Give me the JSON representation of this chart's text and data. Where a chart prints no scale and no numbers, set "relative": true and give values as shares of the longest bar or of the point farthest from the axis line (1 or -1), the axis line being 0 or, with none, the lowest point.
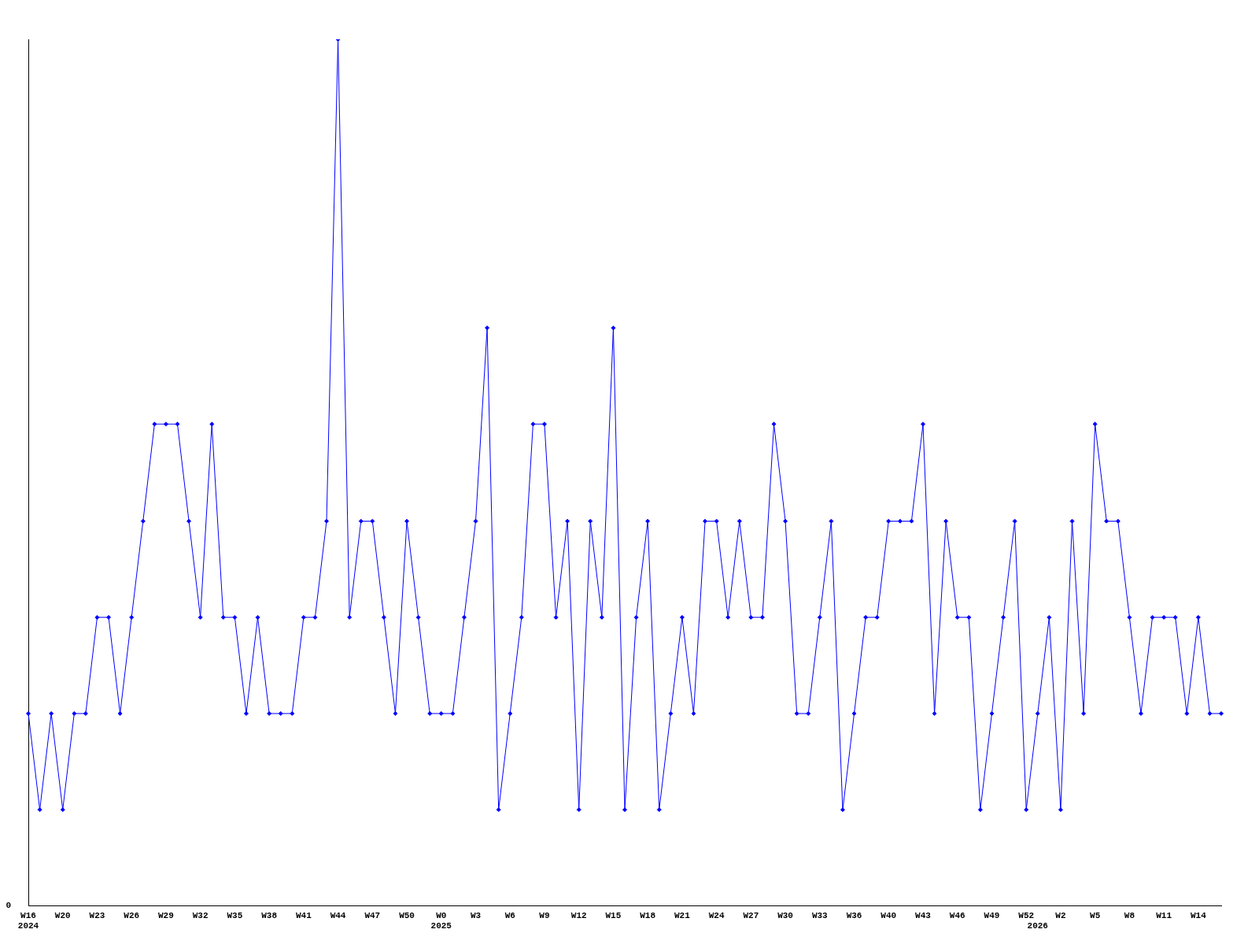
{
  "chart_data": {
    "type": "line",
    "relative": true,
    "marker": "diamond",
    "grid": false,
    "legend": false,
    "categories": [
      "W16\n2024",
      null,
      null,
      "W20",
      null,
      null,
      "W23",
      null,
      null,
      "W26",
      null,
      null,
      "W29",
      null,
      null,
      "W32",
      null,
      null,
      "W35",
      null,
      null,
      "W38",
      null,
      null,
      "W41",
      null,
      null,
      "W44",
      null,
      null,
      "W47",
      null,
      null,
      "W50",
      null,
      null,
      "W0\n2025",
      null,
      null,
      "W3",
      null,
      null,
      "W6",
      null,
      null,
      "W9",
      null,
      null,
      "W12",
      null,
      null,
      "W15",
      null,
      null,
      "W18",
      null,
      null,
      "W21",
      null,
      null,
      "W24",
      null,
      null,
      "W27",
      null,
      null,
      "W30",
      null,
      null,
      "W33",
      null,
      null,
      "W36",
      null,
      null,
      "W40",
      null,
      null,
      "W43",
      null,
      null,
      "W46",
      null,
      null,
      "W49",
      null,
      null,
      "W52",
      "\n2026",
      null,
      "W2",
      null,
      null,
      "W5",
      null,
      null,
      "W8",
      null,
      null,
      "W11",
      null,
      null,
      "W14",
      null,
      null
    ],
    "series": [
      {
        "color": "#0000ff",
        "values": [
          0.222,
          0.111,
          0.222,
          0.111,
          0.222,
          0.222,
          0.333,
          0.333,
          0.222,
          0.333,
          0.444,
          0.556,
          0.556,
          0.556,
          0.444,
          0.333,
          0.556,
          0.333,
          0.333,
          0.222,
          0.333,
          0.222,
          0.222,
          0.222,
          0.333,
          0.333,
          0.444,
          1,
          0.333,
          0.444,
          0.444,
          0.333,
          0.222,
          0.444,
          0.333,
          0.222,
          0.222,
          0.222,
          0.333,
          0.444,
          0.667,
          0.111,
          0.222,
          0.333,
          0.556,
          0.556,
          0.333,
          0.444,
          0.111,
          0.444,
          0.333,
          0.667,
          0.111,
          0.333,
          0.444,
          0.111,
          0.222,
          0.333,
          0.222,
          0.444,
          0.444,
          0.333,
          0.444,
          0.333,
          0.333,
          0.556,
          0.444,
          0.222,
          0.222,
          0.333,
          0.444,
          0.111,
          0.222,
          0.333,
          0.333,
          0.444,
          0.444,
          0.444,
          0.556,
          0.222,
          0.444,
          0.333,
          0.333,
          0.111,
          0.222,
          0.333,
          0.444,
          0.111,
          0.222,
          0.333,
          0.111,
          0.444,
          0.222,
          0.556,
          0.444,
          0.444,
          0.333,
          0.222,
          0.333,
          0.333,
          0.333,
          0.222,
          0.333,
          0.222,
          0.222
        ]
      }
    ],
    "annotations": [
      "0"
    ]
  }
}
